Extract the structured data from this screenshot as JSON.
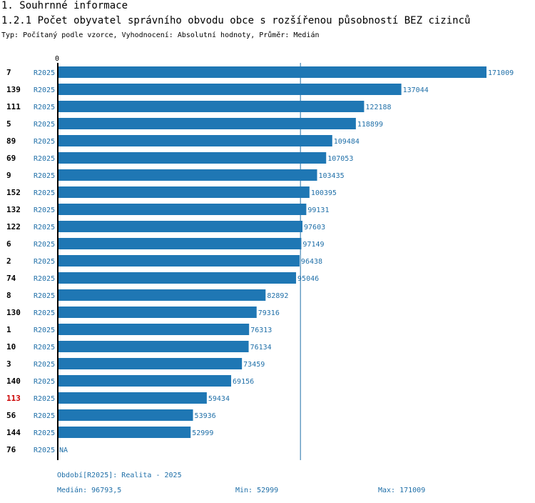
{
  "section_title": "1. Souhrnné informace",
  "chart_title": "1.2.1 Počet obyvatel správního obvodu obce s rozšířenou působností BEZ cizinců",
  "subtitle": "Typ: Počítaný podle vzorce, Vyhodnocení: Absolutní hodnoty, Průměr: Medián",
  "colors": {
    "bar": "#1f77b4",
    "label": "#1f6fa8",
    "highlight": "#cc0000",
    "axis": "#000000",
    "median_line": "#1f6fa8"
  },
  "chart_data": {
    "type": "bar",
    "orientation": "horizontal",
    "axis_zero_label": "0",
    "xlim": [
      0,
      171009
    ],
    "period_label": "R2025",
    "highlight_category": "113",
    "median": 96793.5,
    "categories": [
      "7",
      "139",
      "111",
      "5",
      "89",
      "69",
      "9",
      "152",
      "132",
      "122",
      "6",
      "2",
      "74",
      "8",
      "130",
      "1",
      "10",
      "3",
      "140",
      "113",
      "56",
      "144",
      "76"
    ],
    "values": [
      171009,
      137044,
      122188,
      118899,
      109484,
      107053,
      103435,
      100395,
      99131,
      97603,
      97149,
      96438,
      95046,
      82892,
      79316,
      76313,
      76134,
      73459,
      69156,
      59434,
      53936,
      52999,
      null
    ],
    "value_labels": [
      "171009",
      "137044",
      "122188",
      "118899",
      "109484",
      "107053",
      "103435",
      "100395",
      "99131",
      "97603",
      "97149",
      "96438",
      "95046",
      "82892",
      "79316",
      "76313",
      "76134",
      "73459",
      "69156",
      "59434",
      "53936",
      "52999",
      "NA"
    ]
  },
  "footer": {
    "period": "Období[R2025]: Realita - 2025",
    "median": "Medián: 96793,5",
    "min": "Min: 52999",
    "max": "Max: 171009"
  }
}
